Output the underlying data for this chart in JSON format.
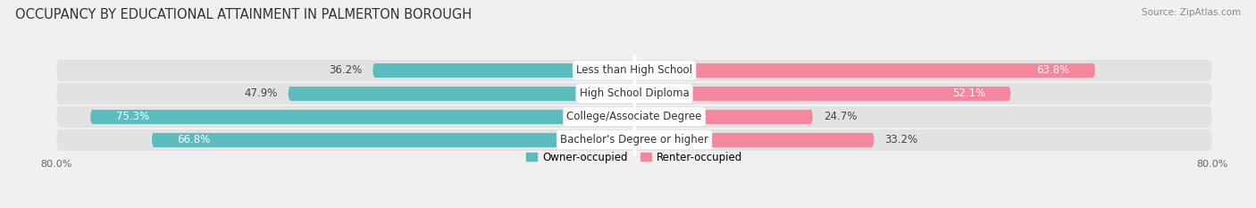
{
  "title": "OCCUPANCY BY EDUCATIONAL ATTAINMENT IN PALMERTON BOROUGH",
  "source": "Source: ZipAtlas.com",
  "categories": [
    "Less than High School",
    "High School Diploma",
    "College/Associate Degree",
    "Bachelor's Degree or higher"
  ],
  "owner_values": [
    36.2,
    47.9,
    75.3,
    66.8
  ],
  "renter_values": [
    63.8,
    52.1,
    24.7,
    33.2
  ],
  "owner_color": "#5bbcbe",
  "renter_color": "#f4879c",
  "background_color": "#f0f0f0",
  "bar_background_color": "#e2e2e2",
  "xlim_left": -80,
  "xlim_right": 80,
  "legend_owner": "Owner-occupied",
  "legend_renter": "Renter-occupied",
  "title_fontsize": 10.5,
  "label_fontsize": 8.5,
  "value_fontsize": 8.5,
  "bar_height": 0.62,
  "fig_width": 14.06,
  "fig_height": 2.33
}
